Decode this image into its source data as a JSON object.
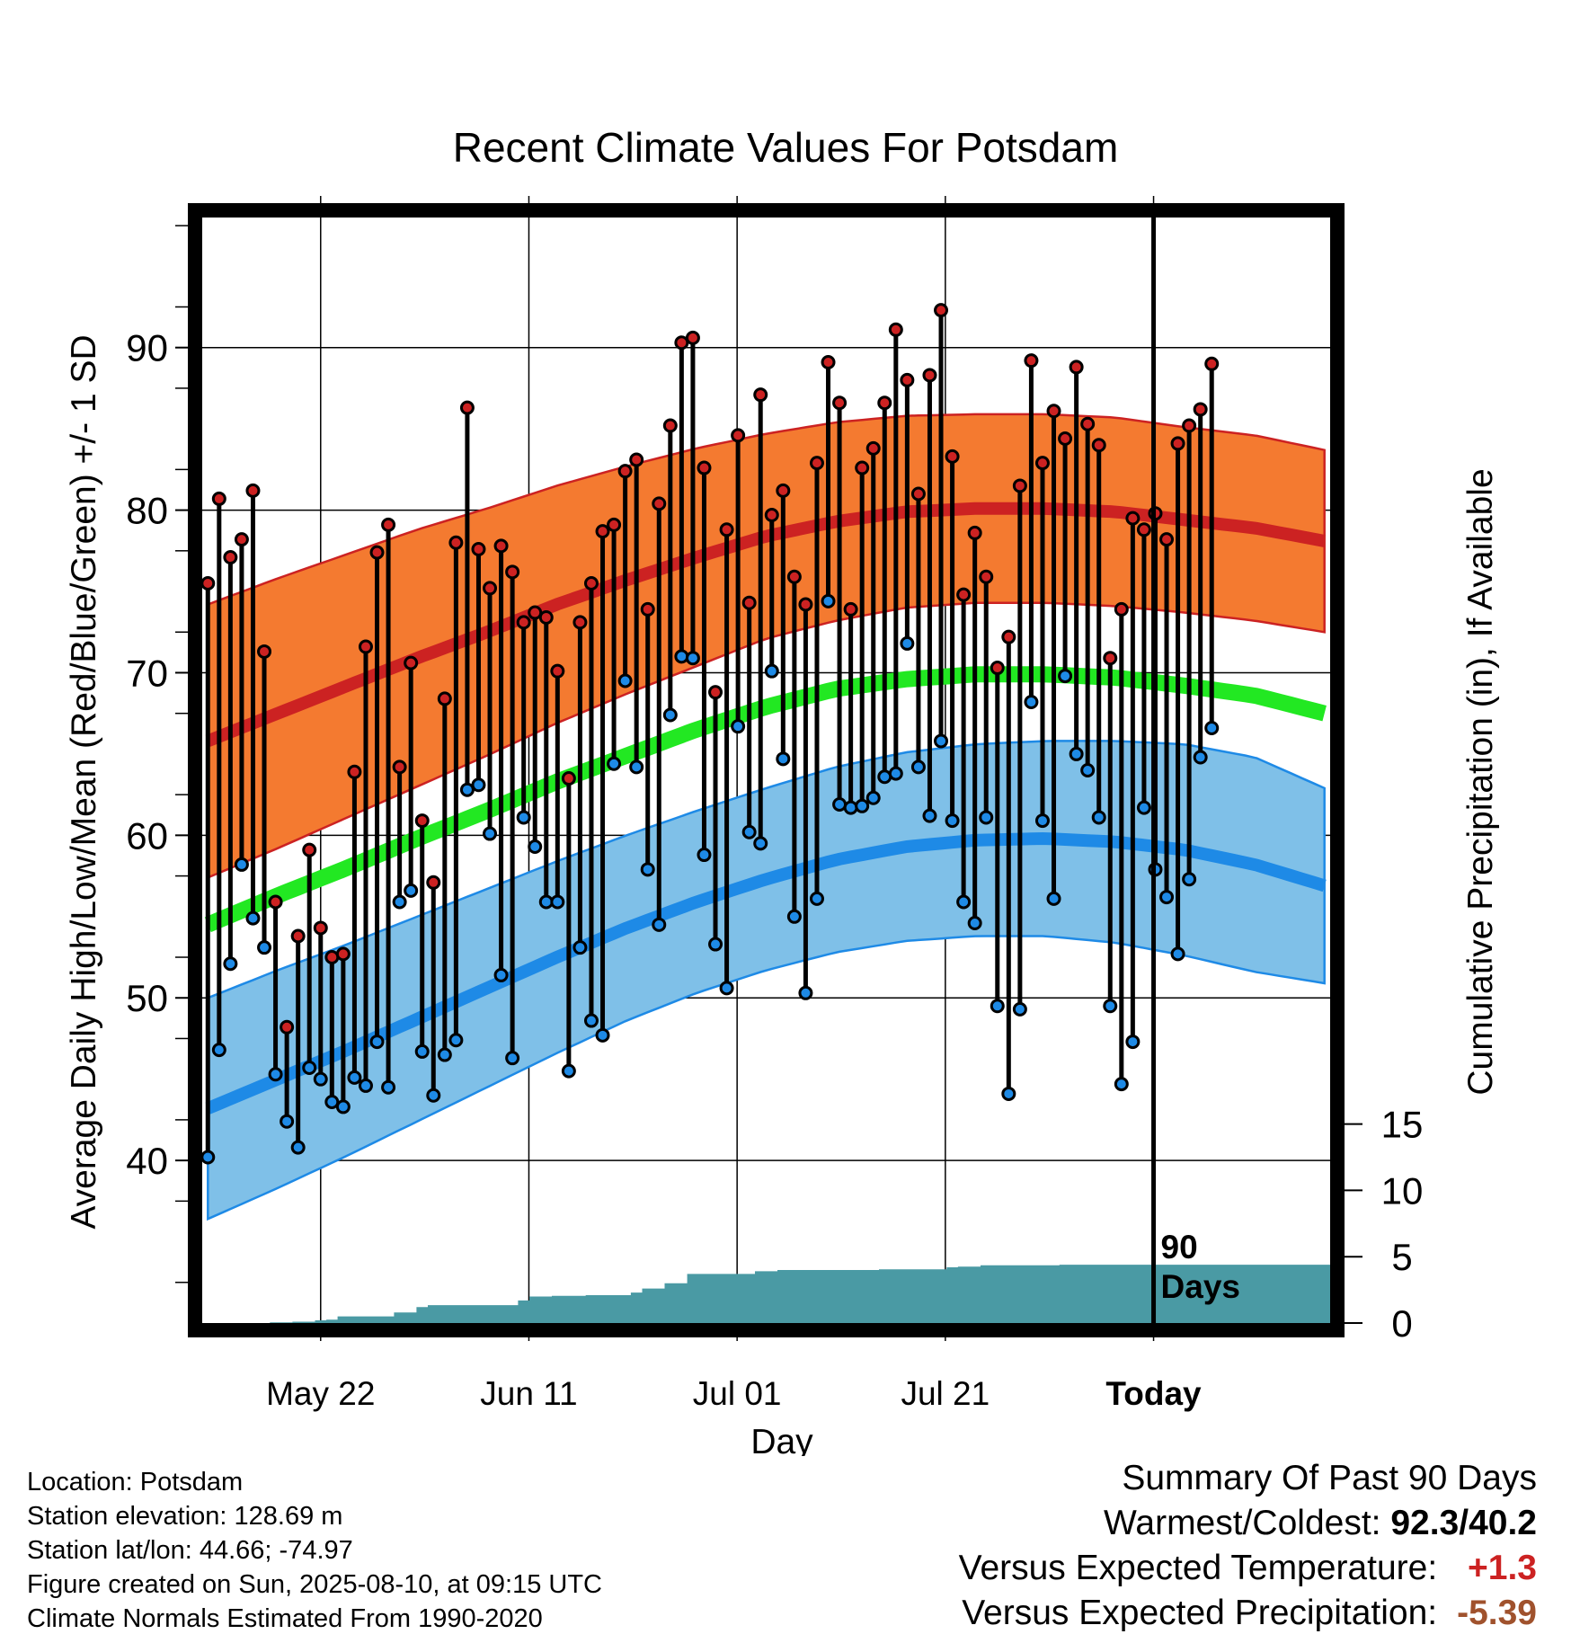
{
  "chart_data": {
    "type": "line",
    "title": "Recent Climate Values For Potsdam",
    "xlabel": "Day",
    "ylabel": "Average Daily High/Low/Mean (Red/Blue/Green) +/- 1 SD",
    "y2label": "Cumulative Precipitation (in), If Available",
    "x_tick_labels": [
      "May 22",
      "Jun 11",
      "Jul 01",
      "Jul 21",
      "Today"
    ],
    "y_ticks": [
      40,
      50,
      60,
      70,
      80,
      90
    ],
    "y2_ticks": [
      0,
      5,
      10,
      15
    ],
    "ylim": [
      30,
      98
    ],
    "y2lim": [
      0,
      50
    ],
    "marker_label": "90 Days",
    "colors": {
      "high": "#cc2222",
      "high_band": "#f47a30",
      "low": "#1e8ae6",
      "low_band": "#7fc0e8",
      "mean": "#22e822",
      "precip": "#4a9aa4"
    },
    "days": 90,
    "high_normal": [
      65.8,
      67.5,
      69.2,
      70.9,
      72.5,
      74.2,
      75.7,
      77.1,
      78.4,
      79.3,
      79.9,
      80.1,
      80.1,
      79.9,
      79.4,
      78.9,
      78.1
    ],
    "high_sd": [
      8.4,
      8.3,
      8.1,
      7.9,
      7.6,
      7.3,
      7.0,
      6.7,
      6.3,
      6.1,
      5.9,
      5.8,
      5.8,
      5.8,
      5.7,
      5.7,
      5.6
    ],
    "low_normal": [
      43.2,
      45.0,
      46.8,
      48.7,
      50.6,
      52.5,
      54.3,
      55.9,
      57.3,
      58.5,
      59.3,
      59.7,
      59.8,
      59.6,
      59.1,
      58.2,
      56.9
    ],
    "low_sd": [
      6.8,
      6.7,
      6.5,
      6.3,
      6.1,
      5.9,
      5.7,
      5.6,
      5.6,
      5.7,
      5.8,
      5.9,
      6.0,
      6.2,
      6.5,
      6.6,
      6.0
    ],
    "mean_normal": [
      54.5,
      56.3,
      58.0,
      59.8,
      61.5,
      63.3,
      64.9,
      66.5,
      67.9,
      69.0,
      69.6,
      69.9,
      69.9,
      69.7,
      69.2,
      68.6,
      67.5
    ],
    "daily_high": [
      75.5,
      80.7,
      77.1,
      78.2,
      81.2,
      71.3,
      55.9,
      48.2,
      53.8,
      59.1,
      54.3,
      52.5,
      52.7,
      63.9,
      71.6,
      77.4,
      79.1,
      64.2,
      70.6,
      60.9,
      57.1,
      68.4,
      78.0,
      86.3,
      77.6,
      75.2,
      77.8,
      76.2,
      73.1,
      73.7,
      73.4,
      70.1,
      63.5,
      73.1,
      75.5,
      78.7,
      79.1,
      82.4,
      83.1,
      73.9,
      80.4,
      85.2,
      90.3,
      90.6,
      82.6,
      68.8,
      78.8,
      84.6,
      74.3,
      87.1,
      79.7,
      81.2,
      75.9,
      74.2,
      82.9,
      89.1,
      86.6,
      73.9,
      82.6,
      83.8,
      86.6,
      91.1,
      88.0,
      81.0,
      88.3,
      92.3,
      83.3,
      74.8,
      78.6,
      75.9,
      70.3,
      72.2,
      81.5,
      89.2,
      82.9,
      86.1,
      84.4,
      88.8,
      85.3,
      84.0,
      70.9,
      73.9,
      79.5,
      78.8,
      79.8,
      78.2,
      84.1,
      85.2,
      86.2,
      89.0
    ],
    "daily_low": [
      40.2,
      46.8,
      52.1,
      58.2,
      54.9,
      53.1,
      45.3,
      42.4,
      40.8,
      45.7,
      45.0,
      43.6,
      43.3,
      45.1,
      44.6,
      47.3,
      44.5,
      55.9,
      56.6,
      46.7,
      44.0,
      46.5,
      47.4,
      62.8,
      63.1,
      60.1,
      51.4,
      46.3,
      61.1,
      59.3,
      55.9,
      55.9,
      45.5,
      53.1,
      48.6,
      47.7,
      64.4,
      69.5,
      64.2,
      57.9,
      54.5,
      67.4,
      71.0,
      70.9,
      58.8,
      53.3,
      50.6,
      66.7,
      60.2,
      59.5,
      70.1,
      64.7,
      55.0,
      50.3,
      56.1,
      74.4,
      61.9,
      61.7,
      61.8,
      62.3,
      63.6,
      63.8,
      71.8,
      64.2,
      61.2,
      65.8,
      60.9,
      55.9,
      54.6,
      61.1,
      49.5,
      44.1,
      49.3,
      68.2,
      60.9,
      56.1,
      69.8,
      65.0,
      64.0,
      61.1,
      49.5,
      44.7,
      47.3,
      61.7,
      57.9,
      56.2,
      52.7,
      57.3,
      64.8,
      66.6
    ],
    "cumulative_precip": [
      0.0,
      0.0,
      0.0,
      0.0,
      0.0,
      0.0,
      0.05,
      0.05,
      0.1,
      0.1,
      0.2,
      0.25,
      0.5,
      0.5,
      0.5,
      0.5,
      0.5,
      0.8,
      0.8,
      1.2,
      1.35,
      1.35,
      1.35,
      1.35,
      1.35,
      1.35,
      1.35,
      1.35,
      1.7,
      2.0,
      2.0,
      2.05,
      2.05,
      2.05,
      2.1,
      2.1,
      2.1,
      2.1,
      2.3,
      2.6,
      2.6,
      3.0,
      3.0,
      3.7,
      3.7,
      3.7,
      3.7,
      3.7,
      3.7,
      3.9,
      3.9,
      4.0,
      4.0,
      4.0,
      4.0,
      4.0,
      4.0,
      4.0,
      4.0,
      4.0,
      4.05,
      4.05,
      4.05,
      4.05,
      4.05,
      4.05,
      4.2,
      4.25,
      4.25,
      4.35,
      4.35,
      4.35,
      4.35,
      4.35,
      4.35,
      4.35,
      4.4,
      4.4,
      4.4,
      4.4,
      4.4,
      4.4,
      4.4,
      4.4,
      4.4,
      4.4,
      4.4,
      4.4,
      4.4,
      4.4
    ]
  },
  "meta": {
    "location": "Location: Potsdam",
    "elevation": "Station elevation: 128.69 m",
    "latlon": "Station lat/lon: 44.66; -74.97",
    "created": "Figure created on Sun, 2025-08-10, at 09:15 UTC",
    "normals": "Climate Normals Estimated From 1990-2020"
  },
  "summary": {
    "title": "Summary Of Past 90 Days",
    "warm_label": "Warmest/Coldest:",
    "warm_value": "92.3",
    "slash": "/",
    "cold_value": "40.2",
    "temp_label": "Versus Expected Temperature:",
    "temp_value": "+1.3",
    "precip_label": "Versus Expected Precipitation:",
    "precip_value": "-5.39",
    "temp_value_color": "#cc2222",
    "precip_value_color": "#a0522d"
  }
}
